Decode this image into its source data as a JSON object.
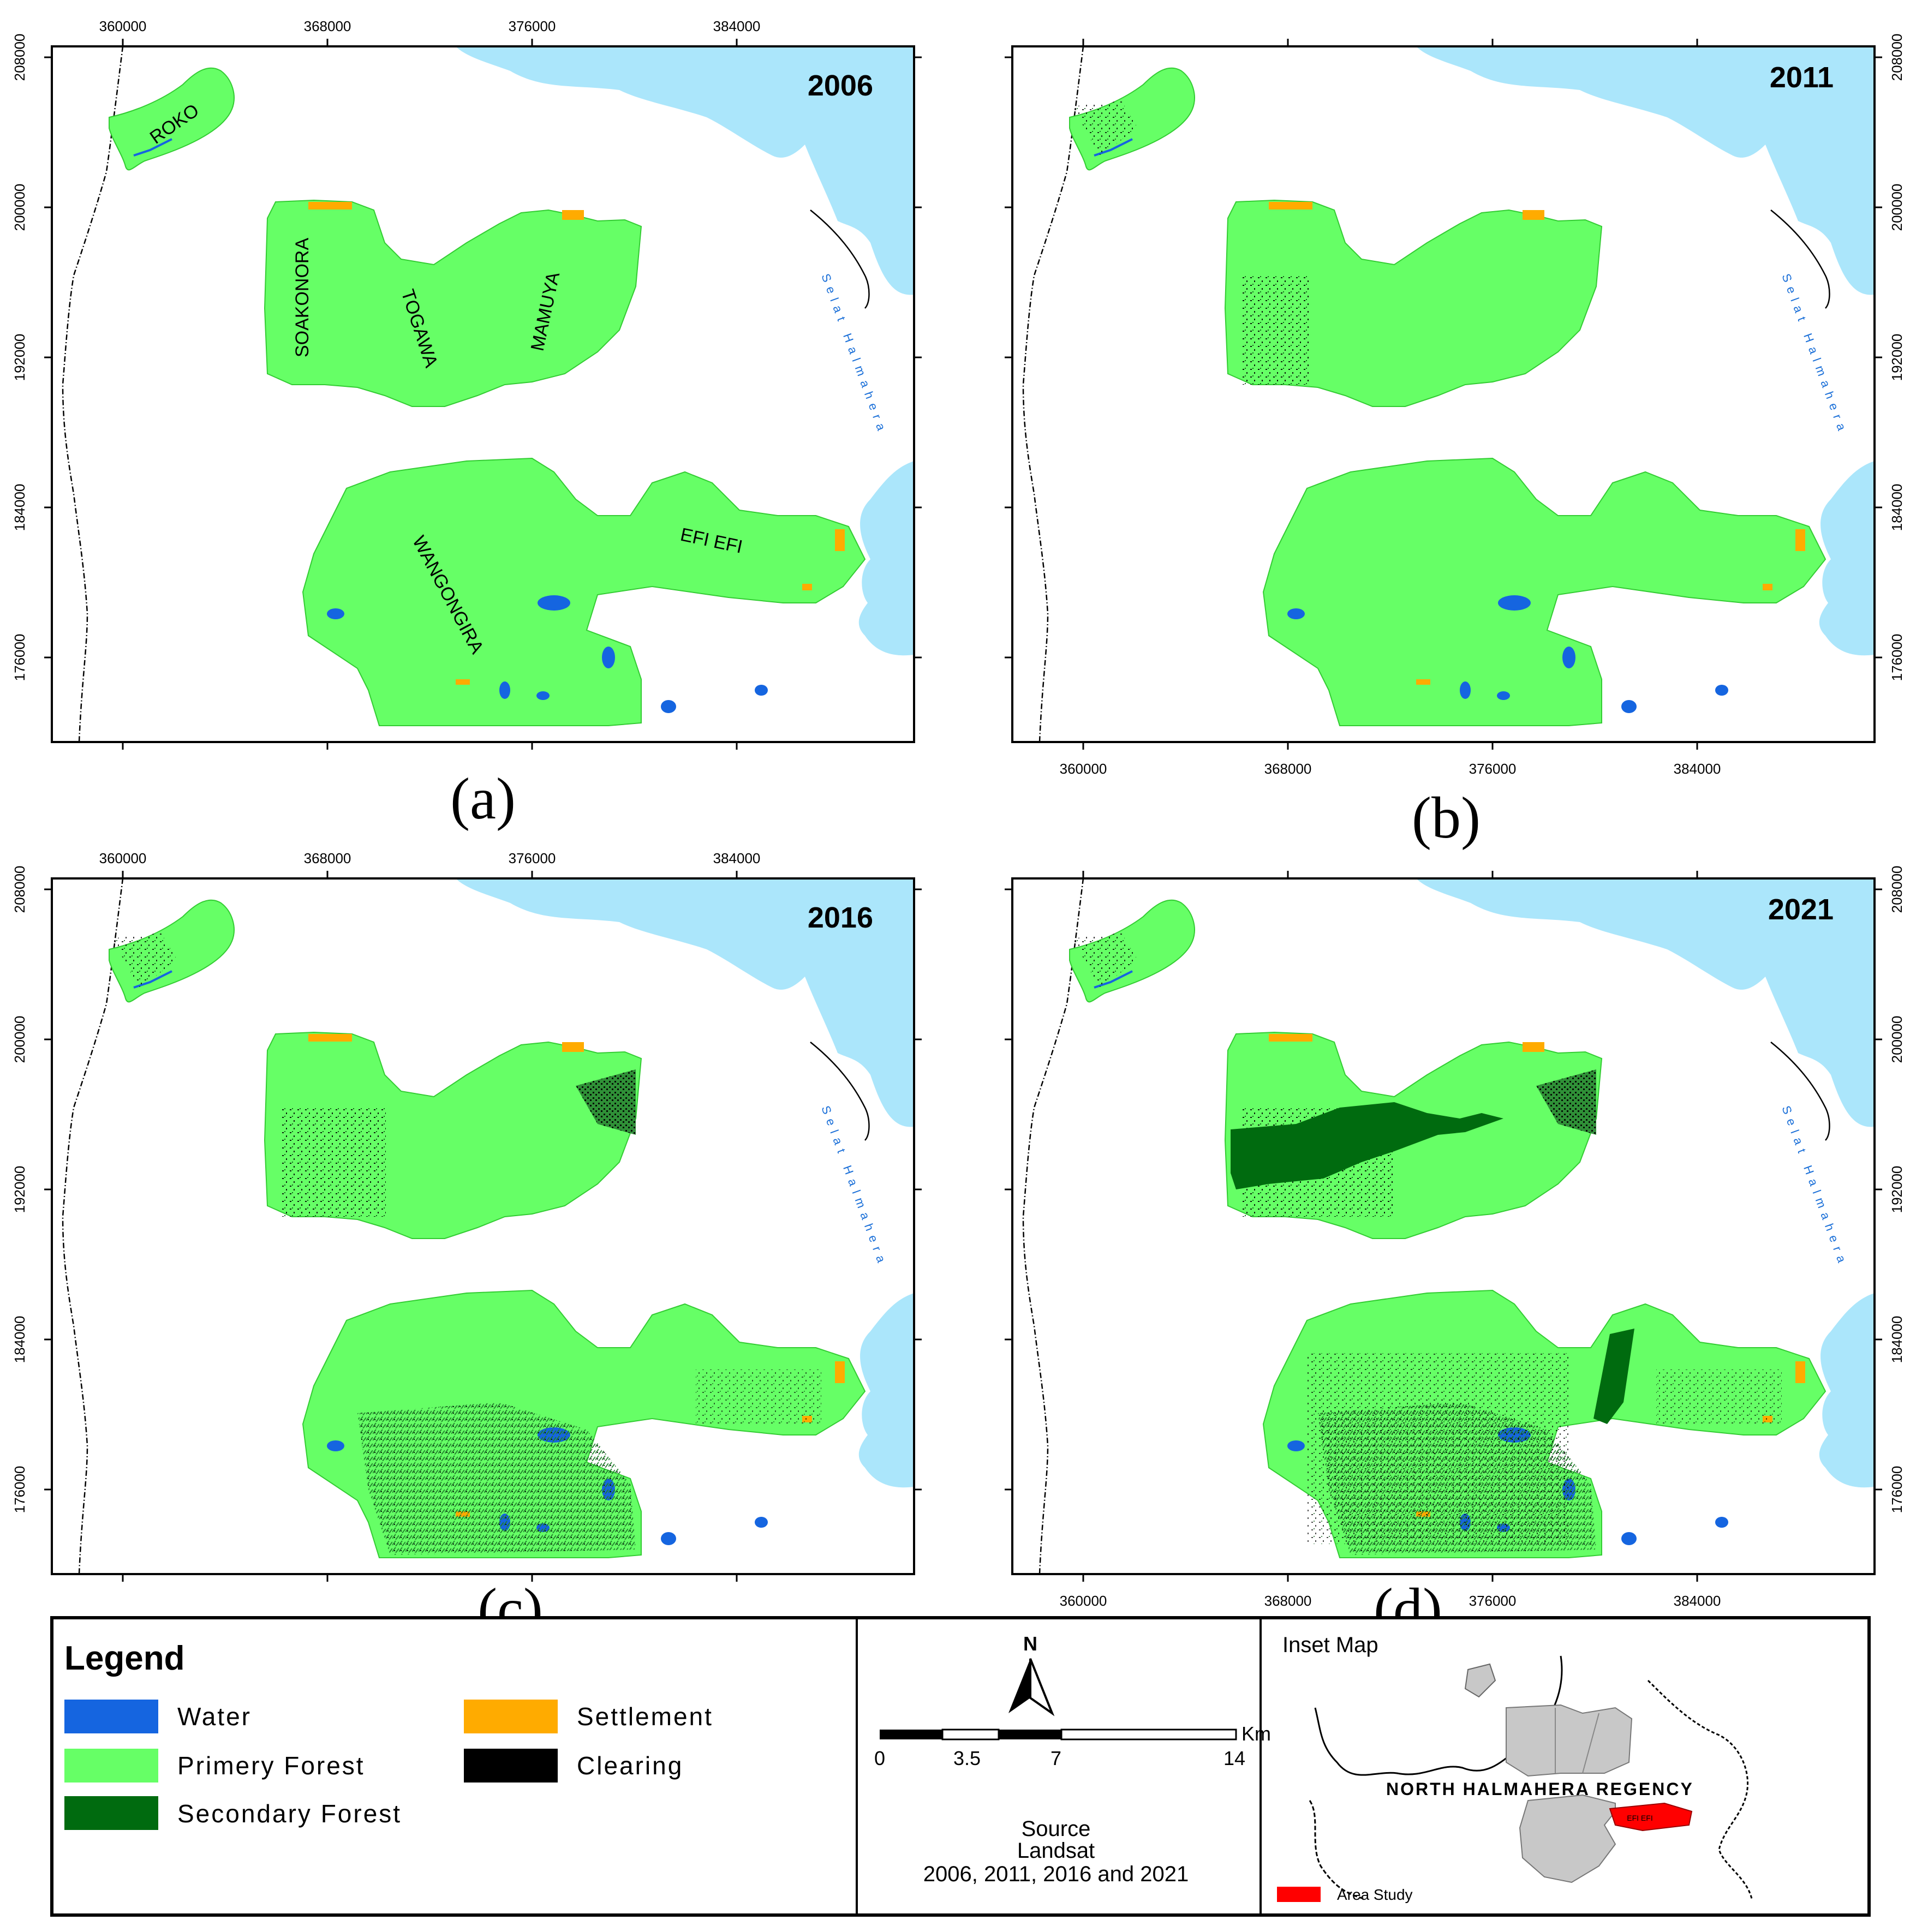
{
  "colors": {
    "water": "#1565e0",
    "primary_forest": "#66ff66",
    "secondary_forest": "#006b0f",
    "settlement": "#ffab00",
    "clearing": "#000000",
    "sea": "#abe6fb",
    "inset_gray": "#c8c8c8",
    "area_study": "#ff0000"
  },
  "x_ticks": [
    "360000",
    "368000",
    "376000",
    "384000"
  ],
  "y_ticks": [
    "208000",
    "200000",
    "192000",
    "184000",
    "176000"
  ],
  "panels": [
    {
      "id": "a",
      "year": "2006",
      "letter": "(a)"
    },
    {
      "id": "b",
      "year": "2011",
      "letter": "(b)"
    },
    {
      "id": "c",
      "year": "2016",
      "letter": "(c)"
    },
    {
      "id": "d",
      "year": "2021",
      "letter": "(d)"
    }
  ],
  "place_labels": {
    "roko": "ROKO",
    "soakonora": "SOAKONORA",
    "togawa": "TOGAWA",
    "mamuya": "MAMUYA",
    "wangongira": "WANGONGIRA",
    "efiefi": "EFI EFI"
  },
  "sea_label": "Selat Halmahera",
  "legend": {
    "title": "Legend",
    "items": [
      {
        "key": "water",
        "label": "Water"
      },
      {
        "key": "primary_forest",
        "label": "Primery Forest"
      },
      {
        "key": "secondary_forest",
        "label": "Secondary Forest"
      },
      {
        "key": "settlement",
        "label": "Settlement"
      },
      {
        "key": "clearing",
        "label": "Clearing"
      }
    ]
  },
  "north_arrow": "N",
  "scale_bar": {
    "ticks": [
      "0",
      "3.5",
      "7",
      "14"
    ],
    "unit": "Km"
  },
  "source": {
    "line1": "Source",
    "line2": "Landsat",
    "line3": "2006, 2011, 2016 and 2021"
  },
  "inset": {
    "title": "Inset Map",
    "region": "NORTH  HALMAHERA REGENCY",
    "badge": "EFI EFI",
    "area_study": "Area Study"
  }
}
